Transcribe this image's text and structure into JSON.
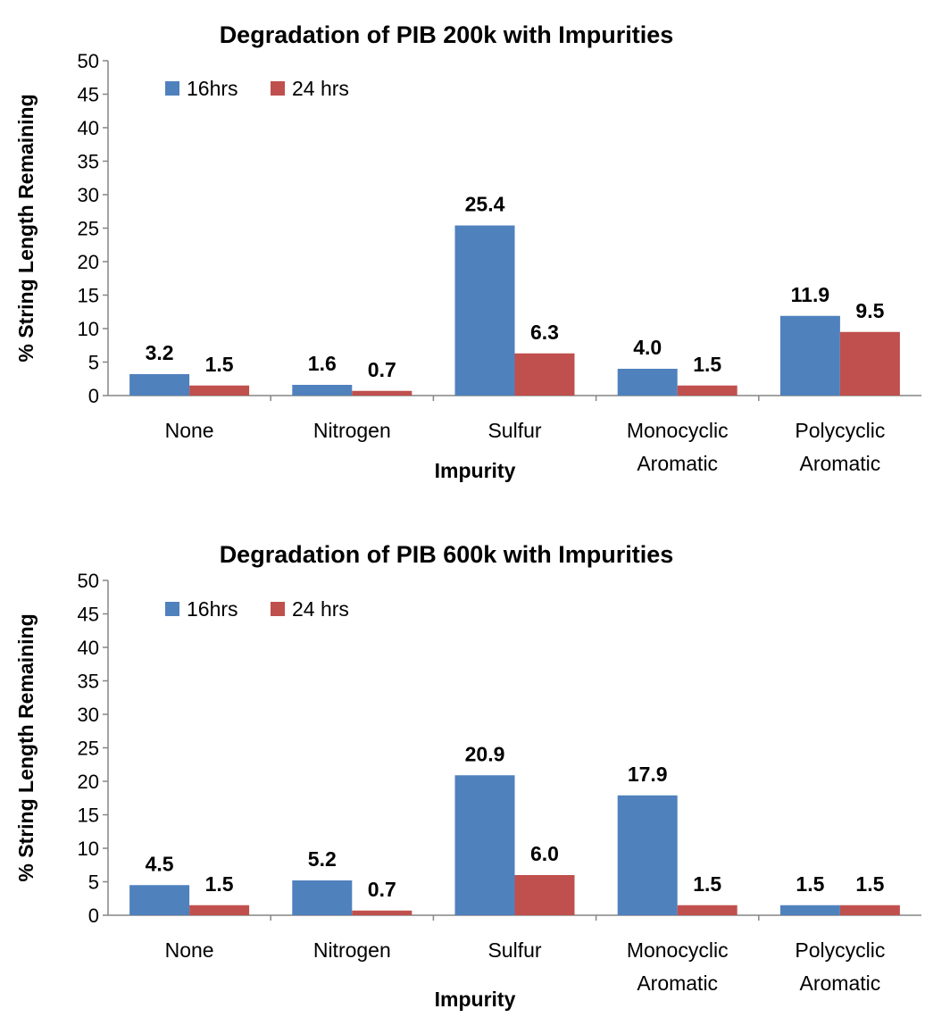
{
  "chart_data": [
    {
      "type": "bar",
      "title": "Degradation of PIB 200k with Impurities",
      "xlabel": "Impurity",
      "ylabel": "% String Length Remaining",
      "ylim": [
        0,
        50
      ],
      "yticks": [
        "0",
        "5",
        "10",
        "15",
        "20",
        "25",
        "30",
        "35",
        "40",
        "45",
        "50"
      ],
      "grid": false,
      "legend_position": "top-left",
      "categories": [
        [
          "None"
        ],
        [
          "Nitrogen"
        ],
        [
          "Sulfur"
        ],
        [
          "Monocyclic",
          "Aromatic"
        ],
        [
          "Polycyclic",
          "Aromatic"
        ]
      ],
      "series": [
        {
          "name": "16hrs",
          "color": "#4f81bd",
          "values": [
            3.2,
            1.6,
            25.4,
            4.0,
            11.9
          ],
          "labels": [
            "3.2",
            "1.6",
            "25.4",
            "4.0",
            "11.9"
          ]
        },
        {
          "name": "24 hrs",
          "color": "#c0504d",
          "values": [
            1.5,
            0.7,
            6.3,
            1.5,
            9.5
          ],
          "labels": [
            "1.5",
            "0.7",
            "6.3",
            "1.5",
            "9.5"
          ]
        }
      ]
    },
    {
      "type": "bar",
      "title": "Degradation of PIB 600k with Impurities",
      "xlabel": "Impurity",
      "ylabel": "% String Length Remaining",
      "ylim": [
        0,
        50
      ],
      "yticks": [
        "0",
        "5",
        "10",
        "15",
        "20",
        "25",
        "30",
        "35",
        "40",
        "45",
        "50"
      ],
      "grid": false,
      "legend_position": "top-left",
      "categories": [
        [
          "None"
        ],
        [
          "Nitrogen"
        ],
        [
          "Sulfur"
        ],
        [
          "Monocyclic",
          "Aromatic"
        ],
        [
          "Polycyclic",
          "Aromatic"
        ]
      ],
      "series": [
        {
          "name": "16hrs",
          "color": "#4f81bd",
          "values": [
            4.5,
            5.2,
            20.9,
            17.9,
            1.5
          ],
          "labels": [
            "4.5",
            "5.2",
            "20.9",
            "17.9",
            "1.5"
          ]
        },
        {
          "name": "24 hrs",
          "color": "#c0504d",
          "values": [
            1.5,
            0.7,
            6.0,
            1.5,
            1.5
          ],
          "labels": [
            "1.5",
            "0.7",
            "6.0",
            "1.5",
            "1.5"
          ]
        }
      ]
    }
  ]
}
